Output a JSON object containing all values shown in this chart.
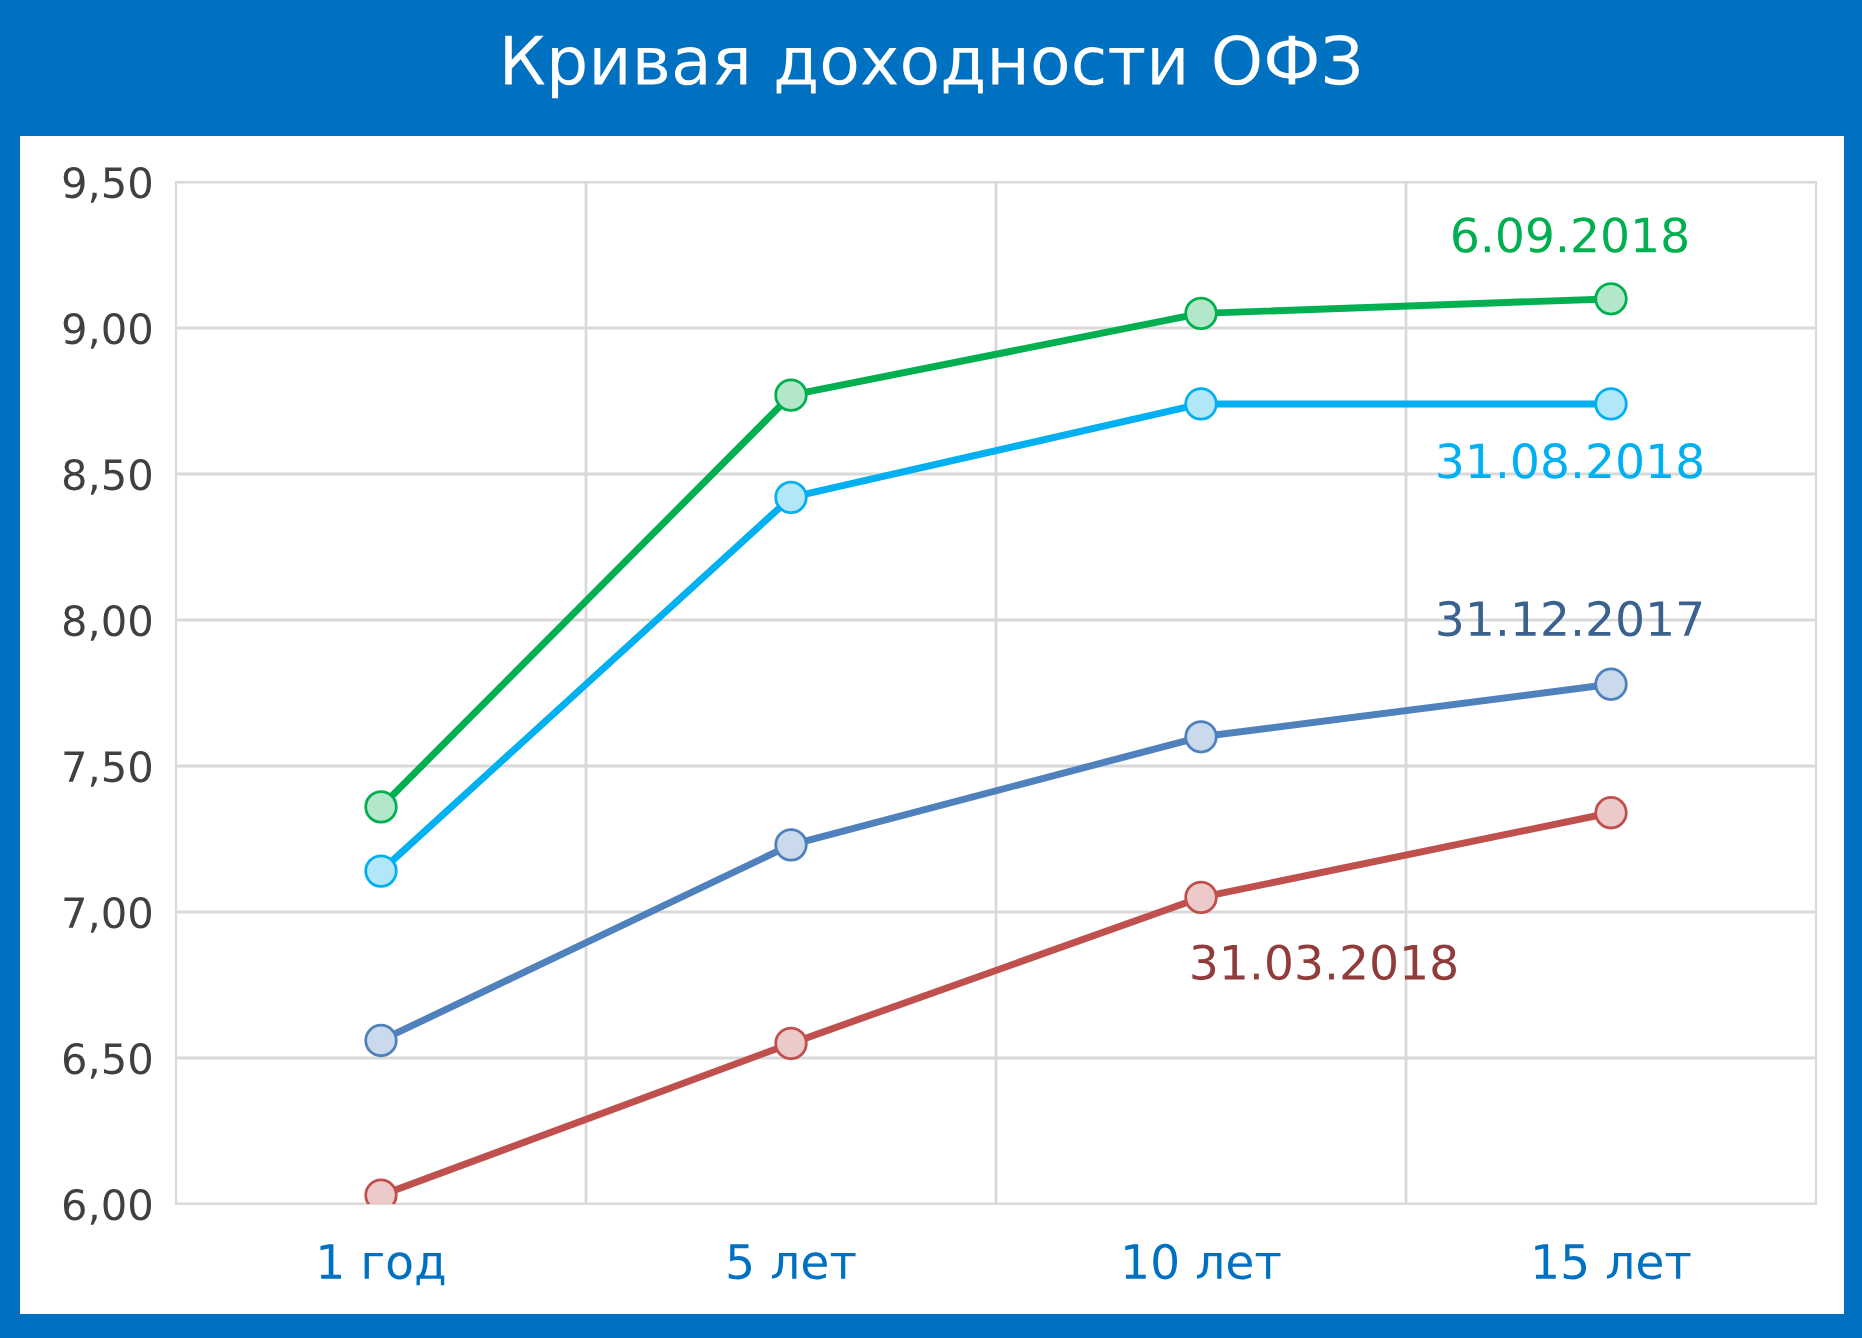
{
  "chart_data": {
    "type": "line",
    "title": "Кривая доходности ОФЗ",
    "categories": [
      "1 год",
      "5 лет",
      "10 лет",
      "15 лет"
    ],
    "series": [
      {
        "name": "6.09.2018",
        "color": "#00b050",
        "values": [
          7.36,
          8.77,
          9.05,
          9.1
        ]
      },
      {
        "name": "31.08.2018",
        "color": "#00b0f0",
        "values": [
          7.14,
          8.42,
          8.74,
          8.74
        ]
      },
      {
        "name": "31.12.2017",
        "color": "#4f81bd",
        "values": [
          6.56,
          7.23,
          7.6,
          7.78
        ]
      },
      {
        "name": "31.03.2018",
        "color": "#c0504d",
        "values": [
          6.03,
          6.55,
          7.05,
          7.34
        ]
      }
    ],
    "ylim": [
      6.0,
      9.5
    ],
    "yticks": [
      {
        "value": 6.0,
        "label": "6,00"
      },
      {
        "value": 6.5,
        "label": "6,50"
      },
      {
        "value": 7.0,
        "label": "7,00"
      },
      {
        "value": 7.5,
        "label": "7,50"
      },
      {
        "value": 8.0,
        "label": "8,00"
      },
      {
        "value": 8.5,
        "label": "8,50"
      },
      {
        "value": 9.0,
        "label": "9,00"
      },
      {
        "value": 9.5,
        "label": "9,50"
      }
    ],
    "grid": true,
    "legend": false,
    "marker": "circle",
    "line_style": "solid"
  }
}
